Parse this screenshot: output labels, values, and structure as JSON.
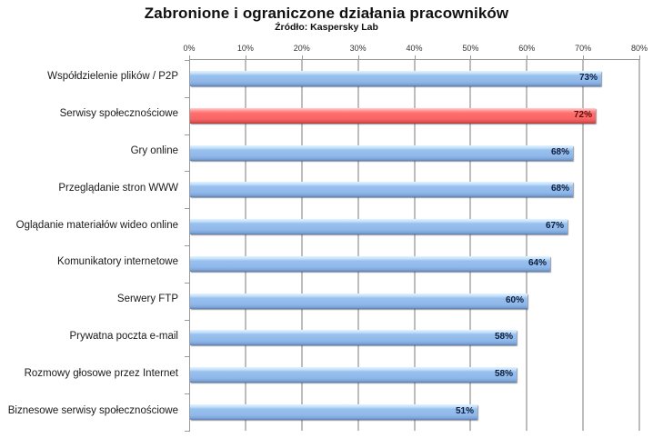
{
  "chart_data": {
    "type": "bar",
    "orientation": "horizontal",
    "title": "Zabronione i ograniczone działania pracowników",
    "subtitle": "Źródło: Kaspersky Lab",
    "xlabel": "",
    "ylabel": "",
    "xlim": [
      0,
      80
    ],
    "x_axis_position": "top",
    "x_ticks": [
      "0%",
      "10%",
      "20%",
      "30%",
      "40%",
      "50%",
      "60%",
      "70%",
      "80%"
    ],
    "grid": true,
    "legend": null,
    "categories": [
      "Współdzielenie plików / P2P",
      "Serwisy społecznościowe",
      "Gry online",
      "Przeglądanie stron WWW",
      "Oglądanie materiałów wideo online",
      "Komunikatory internetowe",
      "Serwery FTP",
      "Prywatna poczta e-mail",
      "Rozmowy głosowe przez Internet",
      "Biznesowe serwisy społecznościowe"
    ],
    "values": [
      73,
      72,
      68,
      68,
      67,
      64,
      60,
      58,
      58,
      51
    ],
    "value_labels": [
      "73%",
      "72%",
      "68%",
      "68%",
      "67%",
      "64%",
      "60%",
      "58%",
      "58%",
      "51%"
    ],
    "bar_colors": [
      "#8fb8ea",
      "#f86565",
      "#8fb8ea",
      "#8fb8ea",
      "#8fb8ea",
      "#8fb8ea",
      "#8fb8ea",
      "#8fb8ea",
      "#8fb8ea",
      "#8fb8ea"
    ],
    "highlighted_category": "Serwisy społecznościowe"
  },
  "colors": {
    "bar_default": "#8fb8ea",
    "bar_highlight": "#f86565",
    "gridline": "#bdbdbd"
  }
}
